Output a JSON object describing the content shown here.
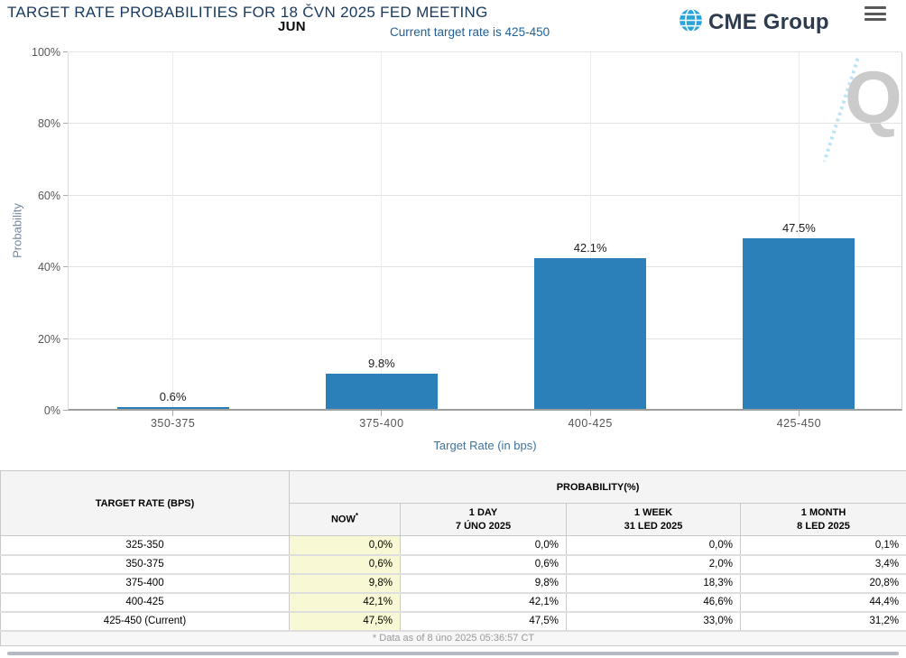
{
  "header": {
    "title": "TARGET RATE PROBABILITIES FOR 18 ČVN 2025 FED MEETING",
    "month_label": "JUN",
    "subtitle": "Current target rate is 425-450",
    "logo_text": "CME Group"
  },
  "chart_data": {
    "type": "bar",
    "categories": [
      "350-375",
      "375-400",
      "400-425",
      "425-450"
    ],
    "values": [
      0.6,
      9.8,
      42.1,
      47.5
    ],
    "value_labels": [
      "0.6%",
      "9.8%",
      "42.1%",
      "47.5%"
    ],
    "xlabel": "Target Rate (in bps)",
    "ylabel": "Probability",
    "ylim": [
      0,
      100
    ],
    "yticks": [
      0,
      20,
      40,
      60,
      80,
      100
    ],
    "ytick_labels": [
      "0%",
      "20%",
      "40%",
      "60%",
      "80%",
      "100%"
    ],
    "grid": true,
    "legend": "none",
    "bar_color": "#2b80ba",
    "watermark": "Q"
  },
  "table": {
    "row_header": "TARGET RATE (BPS)",
    "col_group_header": "PROBABILITY(%)",
    "now_label": "NOW",
    "now_asterisk": "*",
    "columns": [
      {
        "line1": "1 DAY",
        "line2": "7 ÚNO 2025"
      },
      {
        "line1": "1 WEEK",
        "line2": "31 LED 2025"
      },
      {
        "line1": "1 MONTH",
        "line2": "8 LED 2025"
      }
    ],
    "rows": [
      {
        "rate": "325-350",
        "values": [
          "0,0%",
          "0,0%",
          "0,0%",
          "0,1%"
        ]
      },
      {
        "rate": "350-375",
        "values": [
          "0,6%",
          "0,6%",
          "2,0%",
          "3,4%"
        ]
      },
      {
        "rate": "375-400",
        "values": [
          "9,8%",
          "9,8%",
          "18,3%",
          "20,8%"
        ]
      },
      {
        "rate": "400-425",
        "values": [
          "42,1%",
          "42,1%",
          "46,6%",
          "44,4%"
        ]
      },
      {
        "rate": "425-450 (Current)",
        "values": [
          "47,5%",
          "47,5%",
          "33,0%",
          "31,2%"
        ]
      }
    ],
    "footnote": "* Data as of 8 úno 2025 05:36:57 CT"
  },
  "colors": {
    "bar": "#2b80ba",
    "title_navy": "#17395f",
    "subtitle_blue": "#1e5f96",
    "now_column_bg": "#f9f8d4",
    "logo_globe_blue": "#29a3dc"
  }
}
